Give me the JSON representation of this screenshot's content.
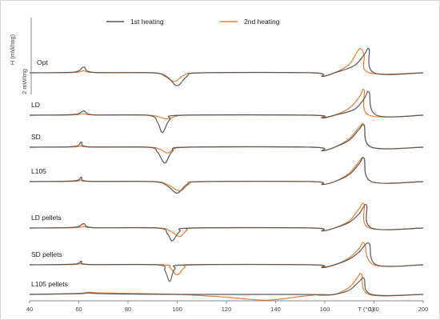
{
  "chart_data": {
    "type": "line",
    "title": "",
    "xlabel": "T (°C)",
    "ylabel": "H (mW/mg)",
    "xlim": [
      40,
      200
    ],
    "xticks": [
      40,
      60,
      80,
      100,
      120,
      140,
      160,
      180,
      200
    ],
    "scale_bar": {
      "label": "2 mW/mg",
      "value": 2
    },
    "legend": {
      "placement": "top-center",
      "entries": [
        {
          "name": "1st heating",
          "color": "#595959"
        },
        {
          "name": "2nd heating",
          "color": "#ED7D31"
        }
      ]
    },
    "traces": [
      {
        "label": "Opt",
        "first": [
          [
            40,
            0
          ],
          [
            58,
            0.1
          ],
          [
            62,
            0.8
          ],
          [
            66,
            0.05
          ],
          [
            90,
            0
          ],
          [
            96,
            -0.6
          ],
          [
            100,
            -1.8
          ],
          [
            104,
            -0.5
          ],
          [
            110,
            0
          ],
          [
            155,
            0
          ],
          [
            159,
            -0.5
          ],
          [
            164,
            0
          ],
          [
            172,
            1
          ],
          [
            176,
            2.5
          ],
          [
            178,
            3.3
          ],
          [
            180,
            0
          ],
          [
            200,
            0
          ]
        ],
        "second": [
          [
            40,
            0
          ],
          [
            58,
            0.05
          ],
          [
            62,
            0.3
          ],
          [
            66,
            0.05
          ],
          [
            90,
            0
          ],
          [
            95,
            -0.5
          ],
          [
            99,
            -1.2
          ],
          [
            103,
            -0.3
          ],
          [
            110,
            0
          ],
          [
            155,
            0
          ],
          [
            159,
            -0.5
          ],
          [
            164,
            0
          ],
          [
            170,
            1.2
          ],
          [
            174,
            3.3
          ],
          [
            176,
            2.5
          ],
          [
            178,
            0
          ],
          [
            200,
            0
          ]
        ]
      },
      {
        "label": "LD",
        "first": [
          [
            40,
            0
          ],
          [
            58,
            0.1
          ],
          [
            62,
            0.6
          ],
          [
            66,
            0.05
          ],
          [
            88,
            0
          ],
          [
            92,
            -1
          ],
          [
            94,
            -2.4
          ],
          [
            97,
            -0.6
          ],
          [
            102,
            0
          ],
          [
            155,
            0
          ],
          [
            159,
            -0.4
          ],
          [
            164,
            0
          ],
          [
            172,
            0.8
          ],
          [
            176,
            2.3
          ],
          [
            178,
            3.2
          ],
          [
            181,
            0
          ],
          [
            200,
            0
          ]
        ],
        "second": [
          [
            40,
            0
          ],
          [
            58,
            0.05
          ],
          [
            62,
            0.2
          ],
          [
            66,
            0.05
          ],
          [
            88,
            0
          ],
          [
            93,
            -0.3
          ],
          [
            96,
            -0.5
          ],
          [
            100,
            -0.1
          ],
          [
            104,
            0
          ],
          [
            155,
            0
          ],
          [
            159,
            -0.3
          ],
          [
            164,
            0
          ],
          [
            170,
            1
          ],
          [
            174,
            2.5
          ],
          [
            176,
            3.5
          ],
          [
            178,
            0
          ],
          [
            200,
            0
          ]
        ]
      },
      {
        "label": "SD",
        "first": [
          [
            40,
            0
          ],
          [
            58,
            0.1
          ],
          [
            61,
            0.7
          ],
          [
            64,
            0.05
          ],
          [
            88,
            0
          ],
          [
            92,
            -0.7
          ],
          [
            95,
            -2.2
          ],
          [
            98,
            -0.6
          ],
          [
            104,
            0
          ],
          [
            155,
            0
          ],
          [
            159,
            -0.5
          ],
          [
            164,
            0
          ],
          [
            170,
            1
          ],
          [
            174,
            2.5
          ],
          [
            176,
            3
          ],
          [
            179,
            0
          ],
          [
            200,
            0
          ]
        ],
        "second": [
          [
            40,
            0
          ],
          [
            58,
            0.05
          ],
          [
            61,
            0.2
          ],
          [
            64,
            0.05
          ],
          [
            88,
            0
          ],
          [
            93,
            -0.3
          ],
          [
            96,
            -0.8
          ],
          [
            99,
            -0.2
          ],
          [
            104,
            0
          ],
          [
            155,
            0
          ],
          [
            159,
            -0.5
          ],
          [
            164,
            0
          ],
          [
            170,
            1.2
          ],
          [
            174,
            2.8
          ],
          [
            176,
            3.1
          ],
          [
            179,
            0
          ],
          [
            200,
            0
          ]
        ]
      },
      {
        "label": "L105",
        "first": [
          [
            40,
            0
          ],
          [
            58,
            0.1
          ],
          [
            61,
            0.6
          ],
          [
            64,
            0.05
          ],
          [
            90,
            0
          ],
          [
            96,
            -0.6
          ],
          [
            100,
            -1.6
          ],
          [
            104,
            -0.4
          ],
          [
            110,
            0
          ],
          [
            155,
            0
          ],
          [
            159,
            -0.4
          ],
          [
            164,
            0
          ],
          [
            170,
            1
          ],
          [
            174,
            2.5
          ],
          [
            176,
            3.2
          ],
          [
            179,
            0
          ],
          [
            200,
            0
          ]
        ],
        "second": [
          [
            40,
            0
          ],
          [
            58,
            0.05
          ],
          [
            61,
            0.2
          ],
          [
            64,
            0.05
          ],
          [
            90,
            0
          ],
          [
            96,
            -0.4
          ],
          [
            101,
            -1.3
          ],
          [
            105,
            -0.3
          ],
          [
            110,
            0
          ],
          [
            155,
            0
          ],
          [
            159,
            -0.4
          ],
          [
            164,
            0
          ],
          [
            170,
            1.2
          ],
          [
            174,
            2.8
          ],
          [
            176,
            3.2
          ],
          [
            179,
            0
          ],
          [
            200,
            0
          ]
        ]
      },
      {
        "label": "LD pellets",
        "first": [
          [
            40,
            0
          ],
          [
            58,
            0.1
          ],
          [
            62,
            0.6
          ],
          [
            66,
            0.05
          ],
          [
            92,
            0
          ],
          [
            96,
            -0.8
          ],
          [
            98,
            -1.8
          ],
          [
            101,
            -0.5
          ],
          [
            106,
            0
          ],
          [
            155,
            0
          ],
          [
            159,
            -0.4
          ],
          [
            164,
            0
          ],
          [
            170,
            0.8
          ],
          [
            174,
            2
          ],
          [
            177,
            3.2
          ],
          [
            179,
            0
          ],
          [
            200,
            0
          ]
        ],
        "second": [
          [
            40,
            0
          ],
          [
            58,
            0.05
          ],
          [
            62,
            0.2
          ],
          [
            66,
            0.05
          ],
          [
            92,
            0
          ],
          [
            97,
            -0.4
          ],
          [
            101,
            -1.2
          ],
          [
            104,
            -0.3
          ],
          [
            108,
            0
          ],
          [
            155,
            0
          ],
          [
            159,
            -0.4
          ],
          [
            164,
            0
          ],
          [
            170,
            1
          ],
          [
            174,
            2.7
          ],
          [
            176,
            3.3
          ],
          [
            178,
            0
          ],
          [
            200,
            0
          ]
        ]
      },
      {
        "label": "SD pellets",
        "first": [
          [
            40,
            0
          ],
          [
            58,
            0.1
          ],
          [
            61,
            0.5
          ],
          [
            64,
            0.05
          ],
          [
            92,
            0
          ],
          [
            95,
            -0.8
          ],
          [
            97,
            -2.3
          ],
          [
            99,
            -0.6
          ],
          [
            104,
            0
          ],
          [
            155,
            0
          ],
          [
            159,
            -0.4
          ],
          [
            164,
            0
          ],
          [
            170,
            0.8
          ],
          [
            174,
            1.8
          ],
          [
            178,
            3
          ],
          [
            181,
            0
          ],
          [
            200,
            0
          ]
        ],
        "second": [
          [
            40,
            0
          ],
          [
            58,
            0.05
          ],
          [
            61,
            0.2
          ],
          [
            64,
            0.05
          ],
          [
            94,
            0
          ],
          [
            97,
            -0.4
          ],
          [
            100,
            -1.4
          ],
          [
            103,
            -0.4
          ],
          [
            108,
            0
          ],
          [
            155,
            0
          ],
          [
            159,
            -0.3
          ],
          [
            164,
            0
          ],
          [
            170,
            1
          ],
          [
            174,
            2.3
          ],
          [
            176,
            3
          ],
          [
            180,
            0
          ],
          [
            200,
            0
          ]
        ]
      },
      {
        "label": "L105 pellets",
        "first": [
          [
            40,
            0
          ],
          [
            60,
            0.1
          ],
          [
            64,
            0.2
          ],
          [
            70,
            0.1
          ],
          [
            100,
            0
          ],
          [
            150,
            0
          ],
          [
            158,
            -0.1
          ],
          [
            164,
            0
          ],
          [
            170,
            0.6
          ],
          [
            174,
            1.8
          ],
          [
            176,
            2.2
          ],
          [
            179,
            0
          ],
          [
            200,
            0
          ]
        ],
        "second": [
          [
            40,
            0
          ],
          [
            60,
            0.15
          ],
          [
            64,
            0.3
          ],
          [
            70,
            0.2
          ],
          [
            100,
            0
          ],
          [
            120,
            -0.4
          ],
          [
            136,
            -0.8
          ],
          [
            150,
            -0.3
          ],
          [
            158,
            0
          ],
          [
            164,
            0
          ],
          [
            170,
            1
          ],
          [
            173,
            2.2
          ],
          [
            175,
            2.8
          ],
          [
            178,
            0
          ],
          [
            200,
            0
          ]
        ]
      }
    ]
  }
}
